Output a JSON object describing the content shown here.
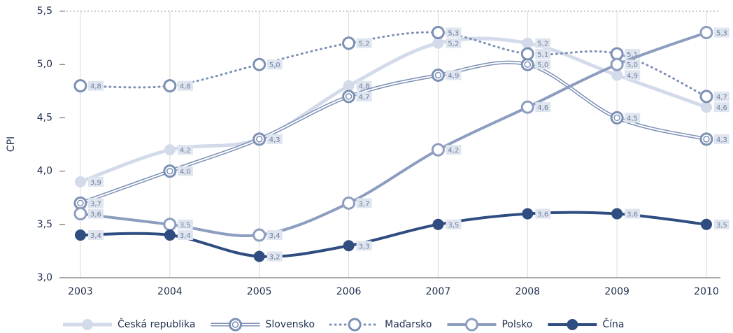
{
  "chart_data": {
    "type": "line",
    "y_label": "CPI",
    "categories": [
      "2003",
      "2004",
      "2005",
      "2006",
      "2007",
      "2008",
      "2009",
      "2010"
    ],
    "ylim": [
      3.0,
      5.5
    ],
    "yticks": [
      {
        "value": 3.0,
        "label": "3,0"
      },
      {
        "value": 3.5,
        "label": "3,5"
      },
      {
        "value": 4.0,
        "label": "4,0"
      },
      {
        "value": 4.5,
        "label": "4,5"
      },
      {
        "value": 5.0,
        "label": "5,0"
      },
      {
        "value": 5.5,
        "label": "5,5"
      }
    ],
    "series": [
      {
        "name": "Česká republika",
        "color": "#d3dbea",
        "style": "solid",
        "marker": "filled",
        "values": [
          3.9,
          4.2,
          4.3,
          4.8,
          5.2,
          5.2,
          4.9,
          4.6
        ],
        "value_labels": [
          "3,9",
          "4,2",
          "4,3",
          "4,8",
          "5,2",
          "5,2",
          "4,9",
          "4,6"
        ]
      },
      {
        "name": "Slovensko",
        "color": "#7c90b4",
        "style": "double",
        "marker": "double",
        "values": [
          3.7,
          4.0,
          4.3,
          4.7,
          4.9,
          5.0,
          4.5,
          4.3
        ],
        "value_labels": [
          "3,7",
          "4,0",
          "4,3",
          "4,7",
          "4,9",
          "5,0",
          "4,5",
          "4,3"
        ]
      },
      {
        "name": "Maďarsko",
        "color": "#7c90b4",
        "style": "dotted",
        "marker": "hollow",
        "values": [
          4.8,
          4.8,
          5.0,
          5.2,
          5.3,
          5.1,
          5.1,
          4.7
        ],
        "value_labels": [
          "4,8",
          "4,8",
          "5,0",
          "5,2",
          "5,3",
          "5,1",
          "5,1",
          "4,7"
        ]
      },
      {
        "name": "Polsko",
        "color": "#8c9dc0",
        "style": "thick",
        "marker": "hollow",
        "values": [
          3.6,
          3.5,
          3.4,
          3.7,
          4.2,
          4.6,
          5.0,
          5.3
        ],
        "value_labels": [
          "3,6",
          "3,5",
          "3,4",
          "3,7",
          "4,2",
          "4,6",
          "5,0",
          "5,3"
        ]
      },
      {
        "name": "Čína",
        "color": "#2f4d80",
        "style": "thick",
        "marker": "filled",
        "values": [
          3.4,
          3.4,
          3.2,
          3.3,
          3.5,
          3.6,
          3.6,
          3.5
        ],
        "value_labels": [
          "3,4",
          "3,4",
          "3,2",
          "3,3",
          "3,5",
          "3,6",
          "3,6",
          "3,5"
        ]
      }
    ]
  }
}
